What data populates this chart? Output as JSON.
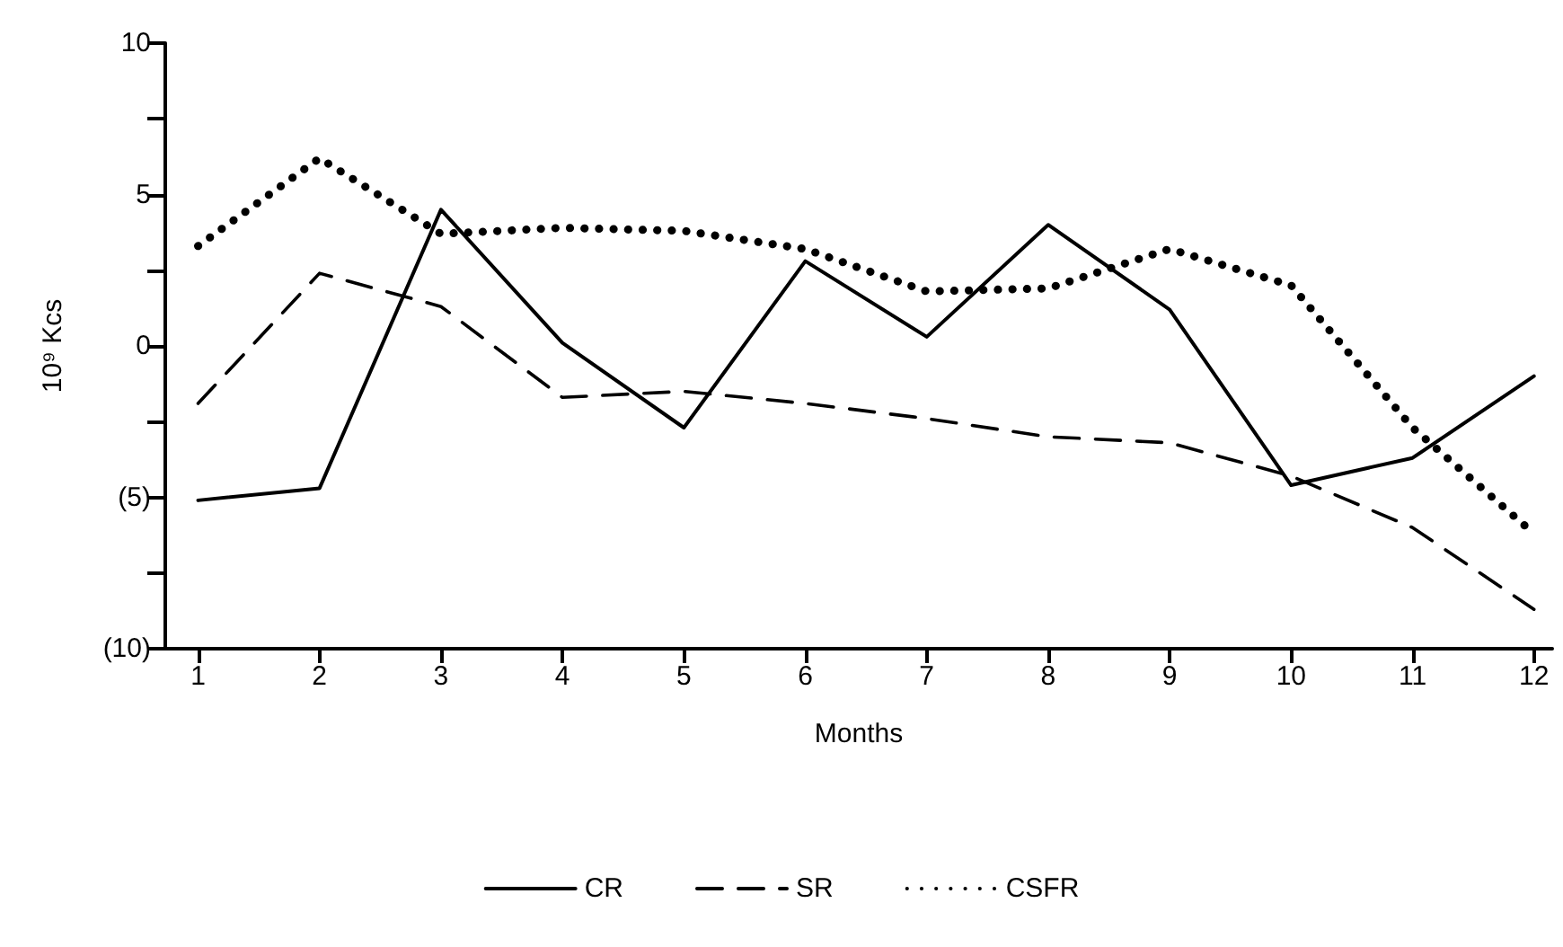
{
  "chart_data": {
    "type": "line",
    "xlabel": "Months",
    "ylabel": "10⁹ Kcs",
    "x": [
      1,
      2,
      3,
      4,
      5,
      6,
      7,
      8,
      9,
      10,
      11,
      12
    ],
    "xlim": [
      0.73,
      12.15
    ],
    "xticks": [
      1,
      2,
      3,
      4,
      5,
      6,
      7,
      8,
      9,
      10,
      11,
      12
    ],
    "ylim": [
      -10,
      10
    ],
    "yticks": [
      {
        "value": -10,
        "label": "(10)"
      },
      {
        "value": -7.5,
        "label": null
      },
      {
        "value": -5,
        "label": "(5)"
      },
      {
        "value": -2.5,
        "label": null
      },
      0,
      {
        "value": 2.5,
        "label": null
      },
      5,
      {
        "value": 7.5,
        "label": null
      },
      10
    ],
    "grid": false,
    "legend": "bottom",
    "marker": "none",
    "series": [
      {
        "name": "CR",
        "color": "#000000",
        "line_style": "solid",
        "values": [
          -5.1,
          -4.7,
          4.5,
          0.1,
          -2.7,
          2.8,
          0.3,
          4.0,
          1.2,
          -4.6,
          -3.7,
          -1.0
        ]
      },
      {
        "name": "SR",
        "color": "#000000",
        "line_style": "dashed",
        "values": [
          -1.9,
          2.4,
          1.3,
          -1.7,
          -1.5,
          -1.9,
          -2.4,
          -3.0,
          -3.2,
          -4.3,
          -6.0,
          -8.7
        ]
      },
      {
        "name": "CSFR",
        "color": "#000000",
        "line_style": "dotted",
        "values": [
          3.3,
          6.2,
          3.7,
          3.9,
          3.8,
          3.2,
          1.8,
          1.9,
          3.2,
          2.0,
          -2.7,
          -6.2
        ]
      }
    ]
  }
}
